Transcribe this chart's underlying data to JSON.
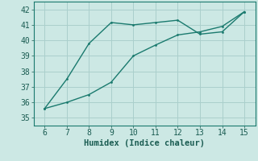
{
  "xlabel": "Humidex (Indice chaleur)",
  "bg_color": "#cce8e4",
  "line_color": "#1a7a6e",
  "grid_color": "#aacfcc",
  "line1_x": [
    6,
    7,
    8,
    9,
    10,
    11,
    12,
    13,
    14,
    15
  ],
  "line1_y": [
    35.6,
    37.5,
    39.8,
    41.15,
    41.0,
    41.15,
    41.3,
    40.4,
    40.55,
    41.85
  ],
  "line2_x": [
    6,
    7,
    8,
    9,
    10,
    11,
    12,
    13,
    14,
    15
  ],
  "line2_y": [
    35.6,
    36.0,
    36.5,
    37.3,
    39.0,
    39.7,
    40.35,
    40.55,
    40.9,
    41.85
  ],
  "xlim": [
    5.5,
    15.5
  ],
  "ylim": [
    34.5,
    42.5
  ],
  "xticks": [
    6,
    7,
    8,
    9,
    10,
    11,
    12,
    13,
    14,
    15
  ],
  "yticks": [
    35,
    36,
    37,
    38,
    39,
    40,
    41,
    42
  ],
  "tick_color": "#1a5c52",
  "xlabel_fontsize": 7.5,
  "tick_fontsize": 7
}
